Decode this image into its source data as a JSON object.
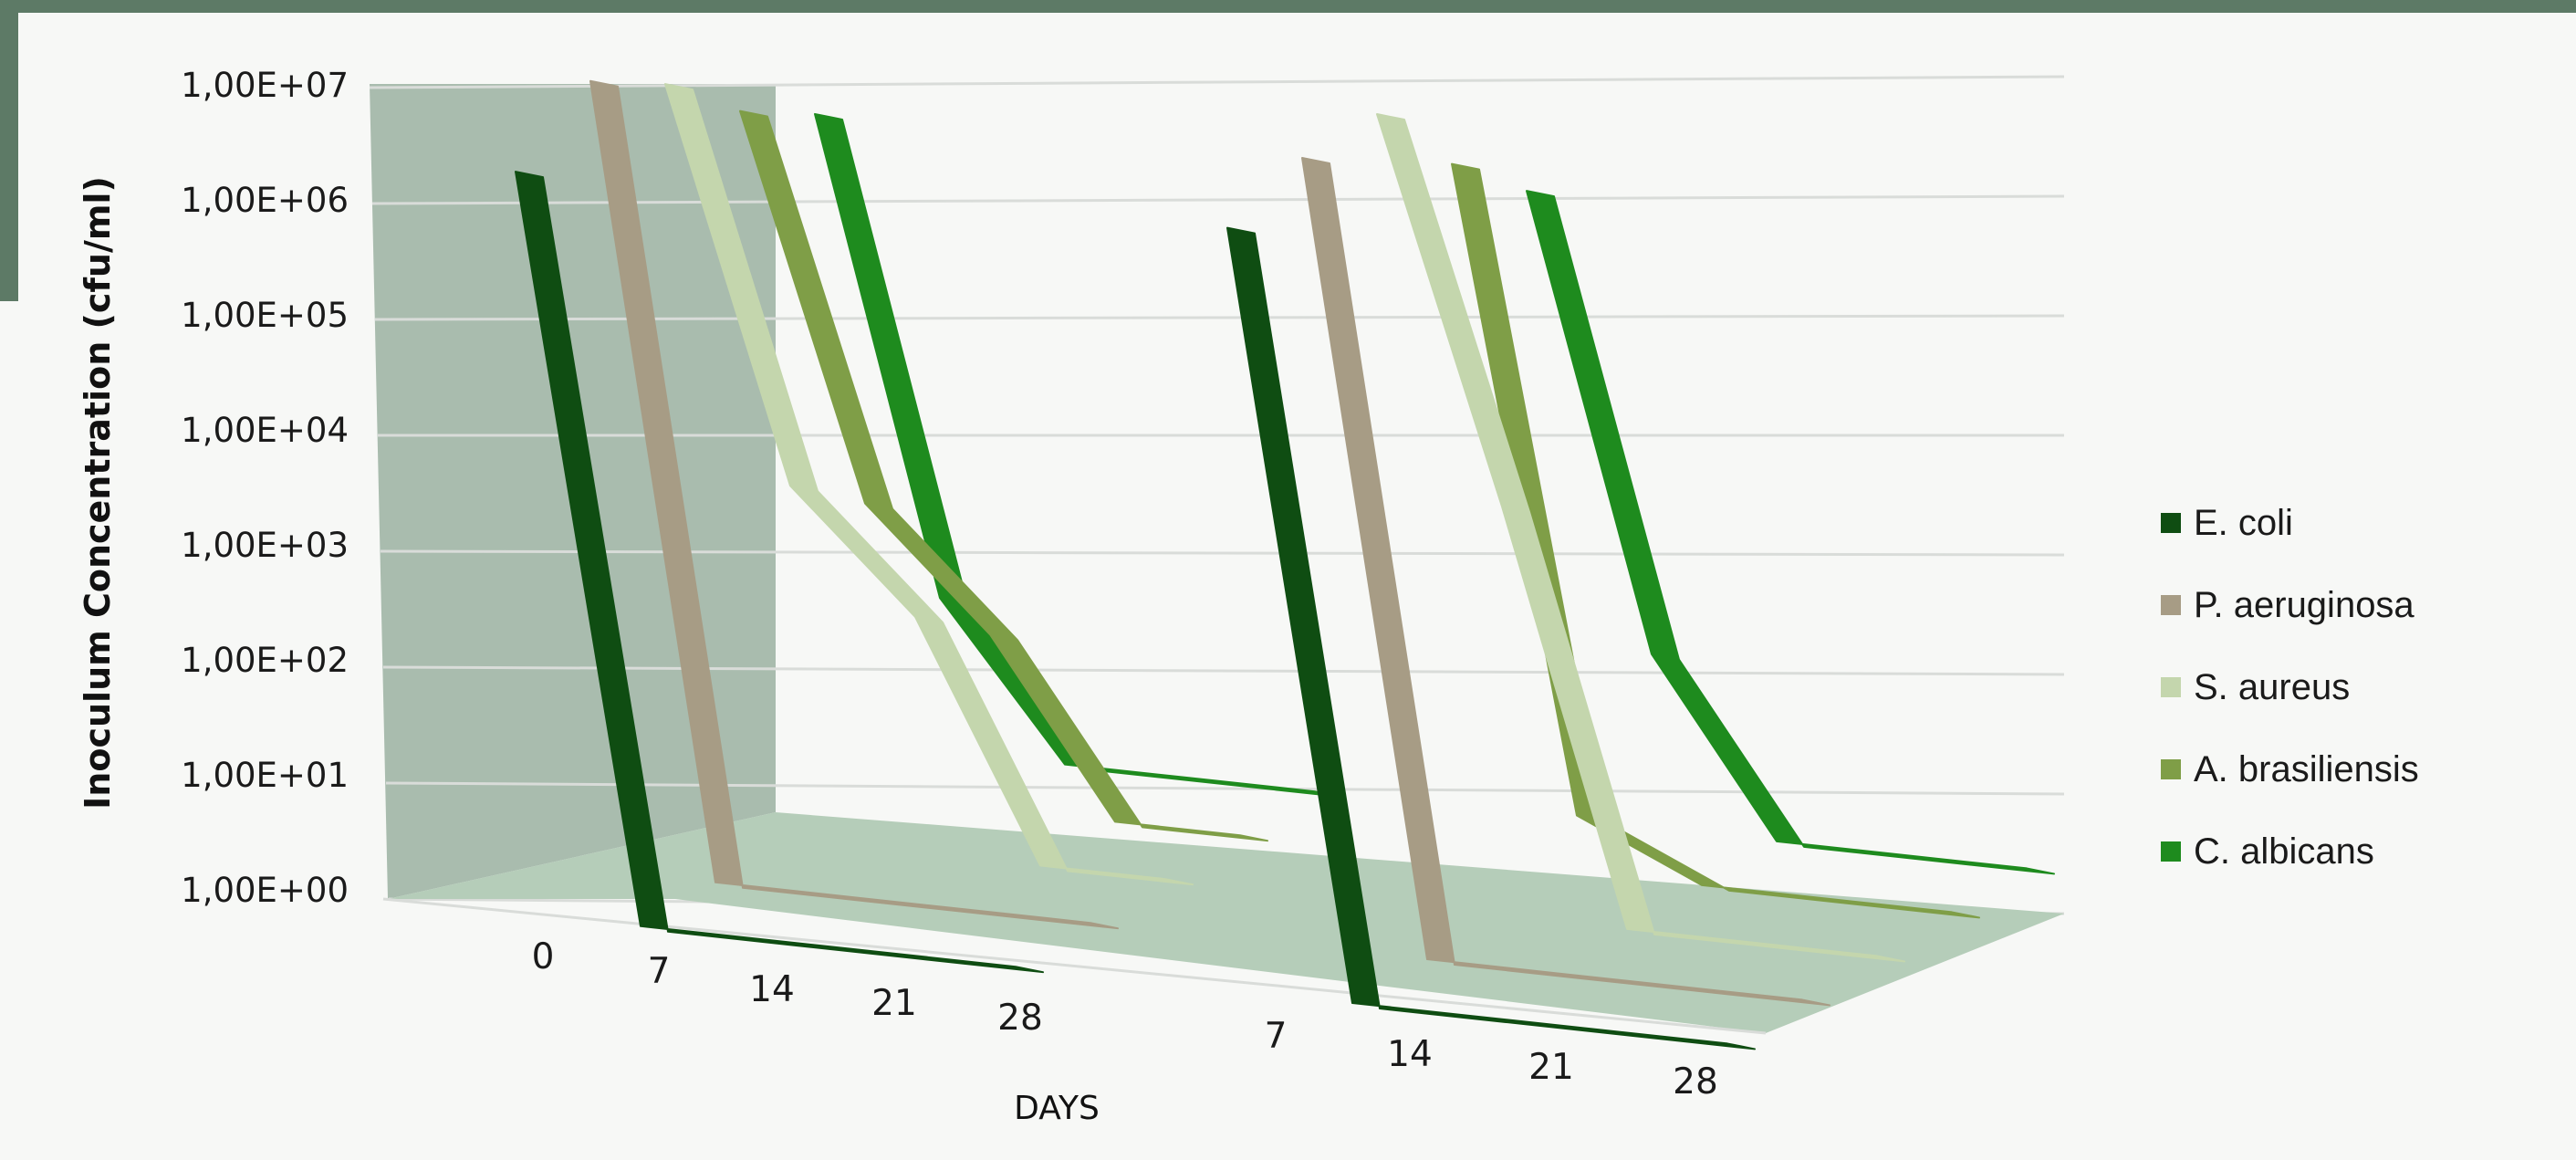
{
  "chart_data": {
    "type": "line",
    "style": "3d-line",
    "xlabel": "DAYS",
    "ylabel": "Inoculum Concentration (cfu/ml)",
    "y_scale": "log",
    "ylim": [
      1,
      10000000
    ],
    "y_tick_labels": [
      "1,00E+00",
      "1,00E+01",
      "1,00E+02",
      "1,00E+03",
      "1,00E+04",
      "1,00E+05",
      "1,00E+06",
      "1,00E+07"
    ],
    "groups": [
      {
        "categories": [
          "0",
          "7",
          "14",
          "21",
          "28"
        ],
        "series": [
          {
            "name": "E. coli",
            "values": [
              2000000,
              1,
              1,
              1,
              1
            ]
          },
          {
            "name": "P. aeruginosa",
            "values": [
              5000000,
              1,
              1,
              1,
              1
            ]
          },
          {
            "name": "S. aureus",
            "values": [
              2000000,
              1000,
              100,
              1,
              1
            ]
          },
          {
            "name": "A. brasiliensis",
            "values": [
              500000,
              300,
              30,
              1,
              1
            ]
          },
          {
            "name": "C. albicans",
            "values": [
              200000,
              20,
              1,
              1,
              1
            ]
          }
        ]
      },
      {
        "categories": [
          "",
          "7",
          "14",
          "21",
          "28"
        ],
        "series": [
          {
            "name": "E. coli",
            "values": [
              3000000,
              1,
              1,
              1,
              1
            ]
          },
          {
            "name": "P. aeruginosa",
            "values": [
              5000000,
              1,
              1,
              1,
              1
            ]
          },
          {
            "name": "S. aureus",
            "values": [
              5000000,
              3000,
              1,
              1,
              1
            ]
          },
          {
            "name": "A. brasiliensis",
            "values": [
              800000,
              3,
              1,
              1,
              1
            ]
          },
          {
            "name": "C. albicans",
            "values": [
              200000,
              30,
              1,
              1,
              1
            ]
          }
        ]
      }
    ],
    "legend": {
      "position": "right",
      "entries": [
        "E. coli",
        "P. aeruginosa",
        "S. aureus",
        "A. brasiliensis",
        "C. albicans"
      ]
    },
    "colors": [
      "#0f4d12",
      "#a79c85",
      "#c4d6ad",
      "#7f9e47",
      "#1e8b1e"
    ],
    "wall_color": "#a9bcae",
    "floor_color": "#b5cdb9",
    "grid": true
  }
}
